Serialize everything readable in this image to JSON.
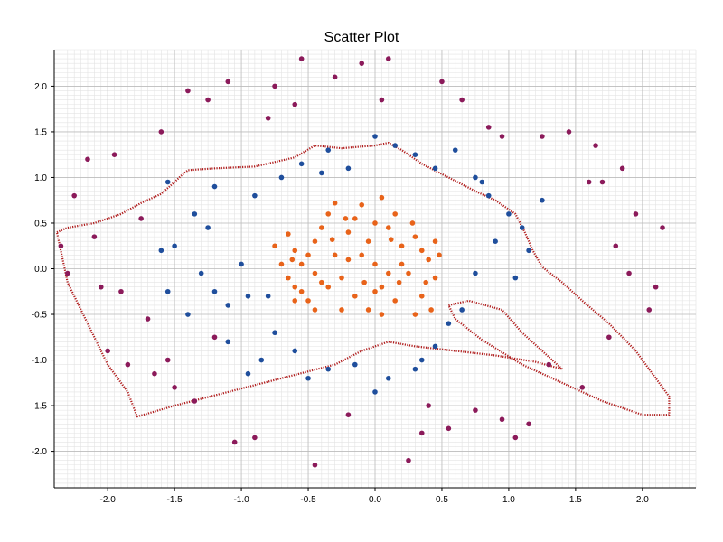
{
  "chart_data": {
    "type": "scatter",
    "title": "Scatter Plot",
    "xlabel": "",
    "ylabel": "",
    "xlim": [
      -2.4,
      2.4
    ],
    "ylim": [
      -2.4,
      2.4
    ],
    "x_ticks": [
      "-2.0",
      "-1.5",
      "-1.0",
      "-0.5",
      "0.0",
      "0.5",
      "1.0",
      "1.5",
      "2.0"
    ],
    "y_ticks": [
      "2.0",
      "1.5",
      "1.0",
      "0.5",
      "0.0",
      "-0.5",
      "-1.0",
      "-1.5",
      "-2.0"
    ],
    "grid": true,
    "legend": "none",
    "colors": {
      "outer": "#8b1a5a",
      "middle": "#1f4e9c",
      "inner": "#e8631a",
      "boundary": "#b01c1c",
      "grid_major": "#bdbdbd",
      "grid_minor": "#e3e3e3"
    },
    "series": [
      {
        "key": "inner",
        "values": [
          [
            -0.75,
            0.25
          ],
          [
            -0.65,
            0.38
          ],
          [
            -0.6,
            0.2
          ],
          [
            -0.55,
            0.05
          ],
          [
            -0.6,
            -0.2
          ],
          [
            -0.5,
            -0.35
          ],
          [
            -0.45,
            0.3
          ],
          [
            -0.4,
            0.45
          ],
          [
            -0.35,
            0.6
          ],
          [
            -0.3,
            0.15
          ],
          [
            -0.25,
            -0.1
          ],
          [
            -0.2,
            0.4
          ],
          [
            -0.15,
            0.55
          ],
          [
            -0.1,
            0.7
          ],
          [
            -0.05,
            0.3
          ],
          [
            0.0,
            0.05
          ],
          [
            0.05,
            -0.2
          ],
          [
            0.1,
            0.45
          ],
          [
            0.15,
            0.6
          ],
          [
            0.2,
            0.25
          ],
          [
            0.25,
            -0.05
          ],
          [
            0.3,
            0.35
          ],
          [
            0.35,
            -0.3
          ],
          [
            0.4,
            0.1
          ],
          [
            0.45,
            -0.1
          ],
          [
            0.48,
            0.15
          ],
          [
            0.42,
            -0.45
          ],
          [
            0.3,
            -0.5
          ],
          [
            0.15,
            -0.35
          ],
          [
            0.05,
            -0.5
          ],
          [
            -0.05,
            -0.45
          ],
          [
            -0.15,
            -0.3
          ],
          [
            -0.25,
            -0.45
          ],
          [
            -0.35,
            -0.2
          ],
          [
            -0.45,
            -0.05
          ],
          [
            -0.55,
            -0.25
          ],
          [
            -0.65,
            -0.1
          ],
          [
            -0.7,
            0.05
          ],
          [
            -0.3,
            0.72
          ],
          [
            0.05,
            0.78
          ],
          [
            -0.4,
            -0.15
          ],
          [
            -0.2,
            0.1
          ],
          [
            0.0,
            -0.25
          ],
          [
            0.2,
            0.05
          ],
          [
            0.35,
            0.2
          ],
          [
            -0.1,
            0.15
          ],
          [
            0.1,
            -0.05
          ],
          [
            -0.5,
            0.15
          ],
          [
            0.28,
            0.5
          ],
          [
            -0.6,
            -0.35
          ],
          [
            0.18,
            -0.15
          ],
          [
            -0.32,
            0.32
          ],
          [
            -0.08,
            -0.15
          ],
          [
            0.38,
            -0.15
          ],
          [
            -0.45,
            -0.45
          ],
          [
            0.0,
            0.5
          ],
          [
            -0.22,
            0.55
          ],
          [
            0.12,
            0.32
          ],
          [
            -0.62,
            0.1
          ],
          [
            0.45,
            0.3
          ]
        ]
      },
      {
        "key": "middle",
        "values": [
          [
            -1.55,
            0.95
          ],
          [
            -1.35,
            0.6
          ],
          [
            -1.25,
            0.45
          ],
          [
            -1.5,
            0.25
          ],
          [
            -1.6,
            0.2
          ],
          [
            -1.55,
            -0.25
          ],
          [
            -1.4,
            -0.5
          ],
          [
            -1.2,
            -0.25
          ],
          [
            -1.1,
            -0.4
          ],
          [
            -0.95,
            -0.3
          ],
          [
            -0.9,
            0.8
          ],
          [
            -0.7,
            1.0
          ],
          [
            -0.55,
            1.15
          ],
          [
            -0.35,
            1.3
          ],
          [
            -0.2,
            1.1
          ],
          [
            0.0,
            1.45
          ],
          [
            0.15,
            1.35
          ],
          [
            0.3,
            1.25
          ],
          [
            0.45,
            1.1
          ],
          [
            0.6,
            1.3
          ],
          [
            0.75,
            1.0
          ],
          [
            0.85,
            0.8
          ],
          [
            1.0,
            0.6
          ],
          [
            1.1,
            0.45
          ],
          [
            1.25,
            0.75
          ],
          [
            1.15,
            0.2
          ],
          [
            1.05,
            -0.1
          ],
          [
            0.75,
            -0.05
          ],
          [
            0.65,
            -0.45
          ],
          [
            0.55,
            -0.6
          ],
          [
            0.45,
            -0.85
          ],
          [
            0.3,
            -1.1
          ],
          [
            0.1,
            -1.2
          ],
          [
            0.0,
            -1.35
          ],
          [
            -0.15,
            -1.05
          ],
          [
            -0.35,
            -1.1
          ],
          [
            -0.5,
            -1.2
          ],
          [
            -0.6,
            -0.9
          ],
          [
            -0.75,
            -0.7
          ],
          [
            -0.85,
            -1.0
          ],
          [
            -0.95,
            -1.15
          ],
          [
            -1.1,
            -0.8
          ],
          [
            -1.2,
            0.9
          ],
          [
            -1.0,
            0.05
          ],
          [
            -0.8,
            -0.3
          ],
          [
            0.9,
            0.3
          ],
          [
            0.8,
            0.95
          ],
          [
            -0.4,
            1.05
          ],
          [
            0.35,
            -1.0
          ],
          [
            -1.3,
            -0.05
          ]
        ]
      },
      {
        "key": "outer",
        "values": [
          [
            -2.35,
            0.25
          ],
          [
            -2.3,
            -0.05
          ],
          [
            -2.25,
            0.8
          ],
          [
            -2.1,
            0.35
          ],
          [
            -2.05,
            -0.2
          ],
          [
            -2.0,
            -0.9
          ],
          [
            -1.95,
            1.25
          ],
          [
            -1.85,
            -1.05
          ],
          [
            -1.75,
            0.55
          ],
          [
            -1.7,
            -0.55
          ],
          [
            -1.6,
            1.5
          ],
          [
            -1.55,
            -1.0
          ],
          [
            -1.5,
            -1.3
          ],
          [
            -1.4,
            1.95
          ],
          [
            -1.35,
            -1.45
          ],
          [
            -1.25,
            1.85
          ],
          [
            -1.2,
            -0.75
          ],
          [
            -1.1,
            2.05
          ],
          [
            -1.05,
            -1.9
          ],
          [
            -0.9,
            -1.85
          ],
          [
            -0.8,
            1.65
          ],
          [
            -0.75,
            2.0
          ],
          [
            -0.6,
            1.8
          ],
          [
            -0.45,
            -2.15
          ],
          [
            -0.3,
            2.1
          ],
          [
            -0.1,
            2.25
          ],
          [
            0.1,
            2.3
          ],
          [
            0.25,
            -2.1
          ],
          [
            0.35,
            -1.8
          ],
          [
            0.5,
            2.05
          ],
          [
            0.55,
            -1.75
          ],
          [
            0.65,
            1.85
          ],
          [
            0.75,
            -1.55
          ],
          [
            0.85,
            1.55
          ],
          [
            0.95,
            -1.65
          ],
          [
            1.05,
            -1.85
          ],
          [
            1.15,
            -1.7
          ],
          [
            1.25,
            1.45
          ],
          [
            1.3,
            -1.05
          ],
          [
            1.45,
            1.5
          ],
          [
            1.55,
            -1.3
          ],
          [
            1.65,
            1.35
          ],
          [
            1.75,
            -0.75
          ],
          [
            1.8,
            0.25
          ],
          [
            1.85,
            1.1
          ],
          [
            1.95,
            0.6
          ],
          [
            2.05,
            -0.45
          ],
          [
            2.1,
            -0.2
          ],
          [
            2.15,
            0.45
          ],
          [
            -2.15,
            1.2
          ],
          [
            1.6,
            0.95
          ],
          [
            -0.2,
            -1.6
          ],
          [
            0.4,
            -1.5
          ],
          [
            -1.65,
            -1.15
          ],
          [
            1.9,
            -0.05
          ],
          [
            -1.9,
            -0.25
          ],
          [
            1.7,
            0.95
          ],
          [
            0.05,
            1.85
          ],
          [
            -0.55,
            2.3
          ],
          [
            0.95,
            1.45
          ]
        ]
      }
    ],
    "boundary": [
      [
        -2.38,
        0.4
      ],
      [
        -2.3,
        0.45
      ],
      [
        -2.1,
        0.5
      ],
      [
        -1.9,
        0.6
      ],
      [
        -1.8,
        0.68
      ],
      [
        -1.75,
        0.72
      ],
      [
        -1.6,
        0.82
      ],
      [
        -1.5,
        0.95
      ],
      [
        -1.45,
        1.02
      ],
      [
        -1.4,
        1.08
      ],
      [
        -1.2,
        1.1
      ],
      [
        -0.9,
        1.12
      ],
      [
        -0.6,
        1.22
      ],
      [
        -0.45,
        1.35
      ],
      [
        -0.25,
        1.32
      ],
      [
        0.0,
        1.35
      ],
      [
        0.1,
        1.38
      ],
      [
        0.2,
        1.3
      ],
      [
        0.35,
        1.15
      ],
      [
        0.55,
        1.0
      ],
      [
        0.75,
        0.85
      ],
      [
        0.9,
        0.75
      ],
      [
        1.05,
        0.6
      ],
      [
        1.12,
        0.4
      ],
      [
        1.18,
        0.2
      ],
      [
        1.25,
        0.02
      ],
      [
        1.4,
        -0.15
      ],
      [
        1.55,
        -0.35
      ],
      [
        1.75,
        -0.6
      ],
      [
        1.95,
        -0.9
      ],
      [
        2.1,
        -1.2
      ],
      [
        2.2,
        -1.4
      ],
      [
        2.2,
        -1.6
      ],
      [
        2.0,
        -1.6
      ],
      [
        1.7,
        -1.45
      ],
      [
        1.4,
        -1.25
      ],
      [
        1.1,
        -1.05
      ],
      [
        0.8,
        -0.78
      ],
      [
        0.6,
        -0.55
      ],
      [
        0.55,
        -0.4
      ],
      [
        0.7,
        -0.35
      ],
      [
        0.95,
        -0.45
      ],
      [
        1.1,
        -0.7
      ],
      [
        1.25,
        -0.9
      ],
      [
        1.4,
        -1.1
      ],
      [
        1.2,
        -1.02
      ],
      [
        0.9,
        -0.95
      ],
      [
        0.6,
        -0.9
      ],
      [
        0.3,
        -0.85
      ],
      [
        0.1,
        -0.8
      ],
      [
        -0.1,
        -0.9
      ],
      [
        -0.3,
        -1.05
      ],
      [
        -0.7,
        -1.2
      ],
      [
        -1.1,
        -1.35
      ],
      [
        -1.5,
        -1.5
      ],
      [
        -1.78,
        -1.62
      ],
      [
        -1.85,
        -1.35
      ],
      [
        -2.0,
        -1.05
      ],
      [
        -2.15,
        -0.6
      ],
      [
        -2.3,
        -0.15
      ],
      [
        -2.38,
        0.4
      ]
    ]
  }
}
